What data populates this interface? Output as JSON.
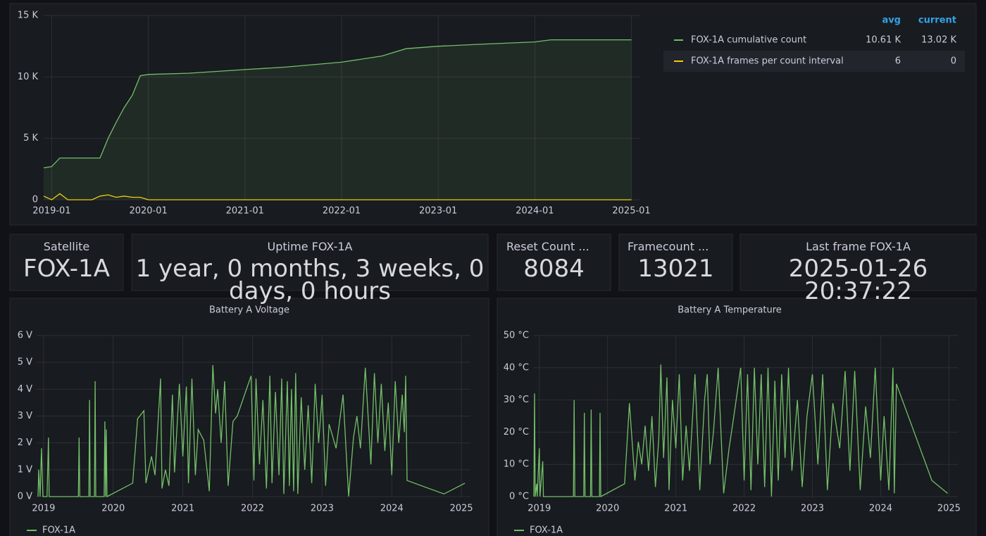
{
  "chart_data": [
    {
      "type": "line",
      "x": [
        "2018-12",
        "2019-01",
        "2019-02",
        "2019-03",
        "2019-04",
        "2019-05",
        "2019-06",
        "2019-07",
        "2019-08",
        "2019-09",
        "2019-10",
        "2019-11",
        "2019-12",
        "2020-01",
        "2020-06",
        "2021-01",
        "2021-06",
        "2022-01",
        "2022-06",
        "2022-09",
        "2023-01",
        "2023-06",
        "2024-01",
        "2024-03",
        "2024-09",
        "2025-01"
      ],
      "series": [
        {
          "name": "FOX-1A cumulative count",
          "color": "#73bf69",
          "fill": true,
          "values": [
            2600,
            2700,
            3400,
            3400,
            3400,
            3400,
            3400,
            3400,
            5000,
            6300,
            7500,
            8500,
            10100,
            10200,
            10300,
            10600,
            10800,
            11200,
            11700,
            12300,
            12500,
            12650,
            12850,
            13020,
            13020,
            13020
          ],
          "legend_values": [
            "10.61 K",
            "13.02 K"
          ]
        },
        {
          "name": "FOX-1A frames per count interval",
          "color": "#f2cc0c",
          "values": [
            300,
            0,
            500,
            0,
            0,
            0,
            0,
            300,
            400,
            200,
            300,
            200,
            200,
            0,
            0,
            0,
            0,
            0,
            0,
            0,
            0,
            0,
            0,
            0,
            0,
            0
          ],
          "legend_values": [
            "6",
            "0"
          ]
        }
      ],
      "legend_columns": [
        "avg",
        "current"
      ],
      "xlim": [
        "2018-12",
        "2025-02"
      ],
      "xticks": [
        "2019-01",
        "2020-01",
        "2021-01",
        "2022-01",
        "2023-01",
        "2024-01",
        "2025-01"
      ],
      "ylim": [
        0,
        15000
      ],
      "yticks": [
        0,
        {
          "value": 5000,
          "label": "5 K"
        },
        {
          "value": 10000,
          "label": "10 K"
        },
        {
          "value": 15000,
          "label": "15 K"
        }
      ],
      "grid": true
    },
    {
      "type": "line",
      "title": "Battery A Voltage",
      "x": [
        2018.92,
        2018.93,
        2018.95,
        2018.97,
        2018.99,
        2019.05,
        2019.07,
        2019.08,
        2019.5,
        2019.51,
        2019.52,
        2019.65,
        2019.66,
        2019.67,
        2019.73,
        2019.74,
        2019.75,
        2019.87,
        2019.88,
        2019.89,
        2019.9,
        2019.91,
        2020.28,
        2020.35,
        2020.44,
        2020.47,
        2020.55,
        2020.6,
        2020.68,
        2020.7,
        2020.75,
        2020.8,
        2020.85,
        2020.88,
        2020.95,
        2021.0,
        2021.05,
        2021.08,
        2021.13,
        2021.18,
        2021.22,
        2021.3,
        2021.38,
        2021.43,
        2021.47,
        2021.5,
        2021.55,
        2021.6,
        2021.65,
        2021.72,
        2021.78,
        2021.98,
        2022.02,
        2022.05,
        2022.1,
        2022.15,
        2022.2,
        2022.25,
        2022.28,
        2022.33,
        2022.38,
        2022.42,
        2022.45,
        2022.5,
        2022.53,
        2022.56,
        2022.59,
        2022.62,
        2022.65,
        2022.7,
        2022.75,
        2022.8,
        2022.85,
        2022.9,
        2022.95,
        2023.0,
        2023.05,
        2023.1,
        2023.2,
        2023.3,
        2023.38,
        2023.45,
        2023.5,
        2023.55,
        2023.62,
        2023.7,
        2023.75,
        2023.8,
        2023.85,
        2023.9,
        2023.95,
        2024.0,
        2024.05,
        2024.1,
        2024.15,
        2024.18,
        2024.2,
        2024.22,
        2024.75,
        2025.05
      ],
      "series": [
        {
          "name": "FOX-1A",
          "color": "#73bf69",
          "values": [
            0,
            1.0,
            0,
            1.8,
            0,
            0,
            2.2,
            0,
            0,
            2.2,
            0,
            0,
            3.6,
            0,
            0,
            4.3,
            0,
            0,
            2.8,
            0,
            2.5,
            0,
            0.5,
            2.9,
            3.2,
            0.5,
            1.5,
            0.8,
            4.4,
            0.3,
            1.0,
            0.4,
            3.8,
            0.9,
            4.2,
            1.5,
            4.1,
            0.5,
            4.4,
            0.8,
            2.5,
            2.1,
            0.2,
            4.9,
            3.1,
            4.0,
            2.0,
            4.3,
            0.4,
            2.8,
            3.0,
            4.5,
            0.6,
            4.4,
            1.2,
            3.6,
            0.3,
            4.5,
            0.5,
            3.9,
            0.8,
            4.4,
            0.1,
            4.3,
            0.4,
            4.0,
            0.2,
            4.6,
            0.1,
            3.7,
            1.0,
            3.4,
            0.5,
            4.2,
            2.0,
            3.8,
            0.4,
            2.7,
            1.8,
            3.8,
            0,
            2.2,
            3.0,
            1.8,
            4.8,
            1.2,
            4.6,
            2.0,
            4.2,
            1.7,
            3.5,
            0.8,
            4.3,
            2.0,
            3.8,
            2.4,
            4.5,
            0.6,
            0.1,
            0.5
          ]
        }
      ],
      "xlim": [
        2018.9,
        2025.13
      ],
      "xticks": [
        2019,
        2020,
        2021,
        2022,
        2023,
        2024,
        2025
      ],
      "ylim": [
        0,
        6
      ],
      "yticks": [
        {
          "value": 0,
          "label": "0 V"
        },
        {
          "value": 1,
          "label": "1 V"
        },
        {
          "value": 2,
          "label": "2 V"
        },
        {
          "value": 3,
          "label": "3 V"
        },
        {
          "value": 4,
          "label": "4 V"
        },
        {
          "value": 5,
          "label": "5 V"
        },
        {
          "value": 6,
          "label": "6 V"
        }
      ],
      "grid": true
    },
    {
      "type": "line",
      "title": "Battery A Temperature",
      "x": [
        2018.92,
        2018.93,
        2018.94,
        2018.96,
        2018.97,
        2019.0,
        2019.01,
        2019.05,
        2019.06,
        2019.5,
        2019.51,
        2019.52,
        2019.65,
        2019.66,
        2019.67,
        2019.75,
        2019.76,
        2019.77,
        2019.88,
        2019.89,
        2019.9,
        2020.25,
        2020.32,
        2020.4,
        2020.45,
        2020.5,
        2020.55,
        2020.6,
        2020.65,
        2020.7,
        2020.75,
        2020.78,
        2020.82,
        2020.87,
        2020.9,
        2020.95,
        2021.0,
        2021.05,
        2021.1,
        2021.15,
        2021.2,
        2021.28,
        2021.35,
        2021.42,
        2021.46,
        2021.5,
        2021.55,
        2021.62,
        2021.7,
        2021.78,
        2021.85,
        2021.95,
        2022.0,
        2022.05,
        2022.1,
        2022.15,
        2022.2,
        2022.25,
        2022.3,
        2022.35,
        2022.4,
        2022.45,
        2022.5,
        2022.55,
        2022.6,
        2022.65,
        2022.7,
        2022.78,
        2022.85,
        2022.92,
        2023.0,
        2023.08,
        2023.15,
        2023.22,
        2023.3,
        2023.4,
        2023.48,
        2023.55,
        2023.62,
        2023.7,
        2023.78,
        2023.85,
        2023.92,
        2024.0,
        2024.05,
        2024.12,
        2024.18,
        2024.2,
        2024.23,
        2024.75,
        2024.98
      ],
      "series": [
        {
          "name": "FOX-1A",
          "color": "#73bf69",
          "values": [
            0,
            32,
            0,
            4,
            0,
            15,
            0,
            11,
            0,
            0,
            30,
            0,
            0,
            26,
            0,
            0,
            27,
            0,
            0,
            26,
            0,
            4,
            29,
            5,
            17,
            10,
            22,
            8,
            25,
            3,
            18,
            41,
            12,
            37,
            2,
            30,
            15,
            38,
            5,
            22,
            8,
            38,
            2,
            30,
            38,
            10,
            20,
            40,
            1,
            15,
            25,
            40,
            5,
            38,
            2,
            40,
            10,
            38,
            3,
            40,
            0,
            36,
            5,
            38,
            12,
            40,
            8,
            30,
            3,
            25,
            38,
            10,
            38,
            2,
            29,
            15,
            39,
            8,
            39,
            2,
            28,
            12,
            40,
            5,
            25,
            2,
            40,
            1,
            35,
            5,
            1
          ]
        }
      ],
      "xlim": [
        2018.92,
        2025.13
      ],
      "xticks": [
        2019,
        2020,
        2021,
        2022,
        2023,
        2024,
        2025
      ],
      "ylim": [
        0,
        50
      ],
      "yticks": [
        {
          "value": 0,
          "label": "0 °C"
        },
        {
          "value": 10,
          "label": "10 °C"
        },
        {
          "value": 20,
          "label": "20 °C"
        },
        {
          "value": 30,
          "label": "30 °C"
        },
        {
          "value": 40,
          "label": "40 °C"
        },
        {
          "value": 50,
          "label": "50 °C"
        }
      ],
      "grid": true
    }
  ],
  "stat_panels": [
    {
      "title": "Satellite",
      "value": "FOX-1A"
    },
    {
      "title": "Uptime FOX-1A",
      "value": "1 year, 0 months, 3 weeks, 0 days, 0 hours"
    },
    {
      "title": "Reset Count ...",
      "value": "8084"
    },
    {
      "title": "Framecount ...",
      "value": "13021"
    },
    {
      "title": "Last frame FOX-1A",
      "value": "2025-01-26 20:37:22"
    }
  ]
}
